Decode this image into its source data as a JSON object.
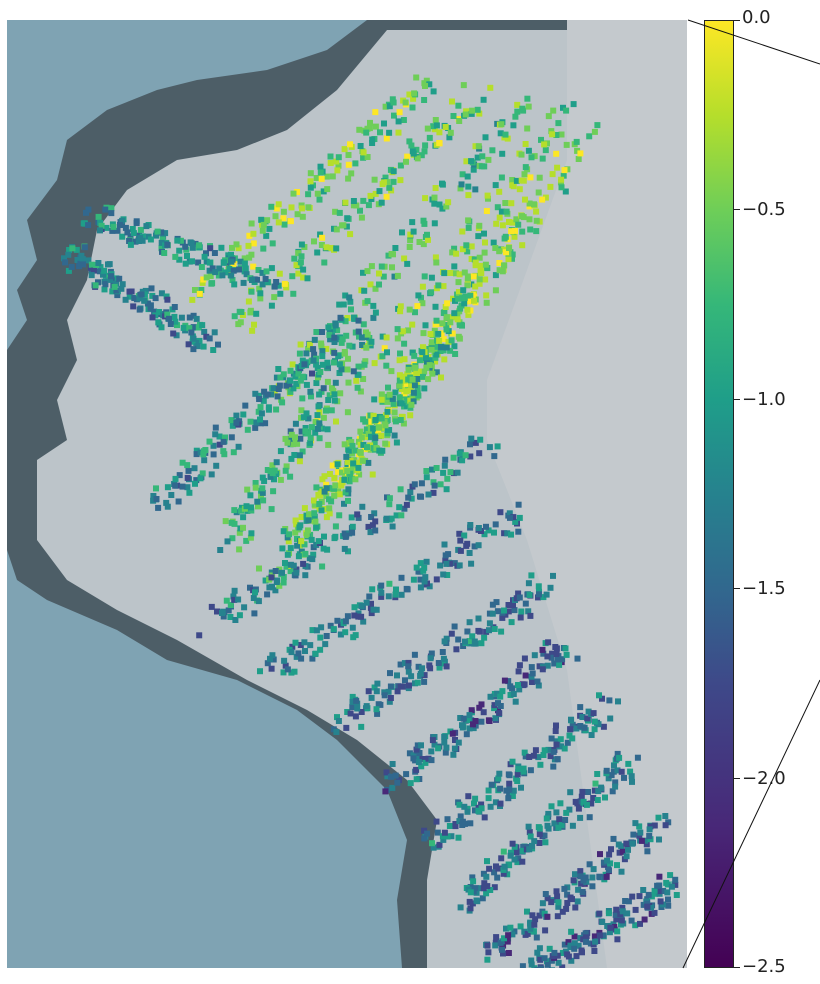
{
  "colorbar": {
    "colormap": "viridis",
    "colors": [
      "#440154",
      "#482878",
      "#3e4989",
      "#31688e",
      "#26828e",
      "#1f9e89",
      "#35b779",
      "#6ece58",
      "#b5de2b",
      "#fde725"
    ],
    "min": -2.5,
    "max": 0.0,
    "ticks": [
      {
        "value": 0.0,
        "label": "0.0"
      },
      {
        "value": -0.5,
        "label": "−0.5"
      },
      {
        "value": -1.0,
        "label": "−1.0"
      },
      {
        "value": -1.5,
        "label": "−1.5"
      },
      {
        "value": -2.0,
        "label": "−2.0"
      },
      {
        "value": -2.5,
        "label": "−2.5"
      }
    ]
  },
  "map": {
    "water_color": "#7fa3b3",
    "land_color": "#c8ced3",
    "dark_land_color": "#3f4f58",
    "ice_color": "#b8bec3"
  }
}
